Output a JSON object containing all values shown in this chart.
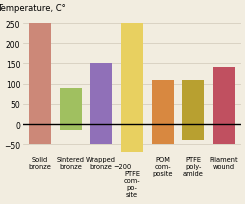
{
  "title": "Temperature, C°",
  "categories": [
    "Solid\nbronze",
    "Sintered\nbronze",
    "Wrapped\nbronze",
    "PTFE\ncom-\npo-\nsite",
    "POM\ncom-\nposite",
    "PTFE\npoly-\namide",
    "Filament\nwound"
  ],
  "top_values": [
    250,
    90,
    150,
    250,
    110,
    110,
    140
  ],
  "bottom_values": [
    -50,
    -15,
    -50,
    -200,
    -50,
    -40,
    -50
  ],
  "bar_colors": [
    "#cc8878",
    "#a0c060",
    "#9070b8",
    "#e8d060",
    "#d88840",
    "#b8a030",
    "#c05060"
  ],
  "ylim": [
    -70,
    275
  ],
  "ytick_vals": [
    -50,
    0,
    50,
    100,
    150,
    200,
    250
  ],
  "background_color": "#f2ede0",
  "grid_color": "#d0c8b8",
  "zero_line_color": "#000000",
  "title_fontsize": 6,
  "label_fontsize": 4.8,
  "ytick_fontsize": 5.5,
  "bar_width": 0.72,
  "ptfe_annot_text": "−200",
  "ptfe_label": "PTFE\ncom-\npo-\nsite"
}
